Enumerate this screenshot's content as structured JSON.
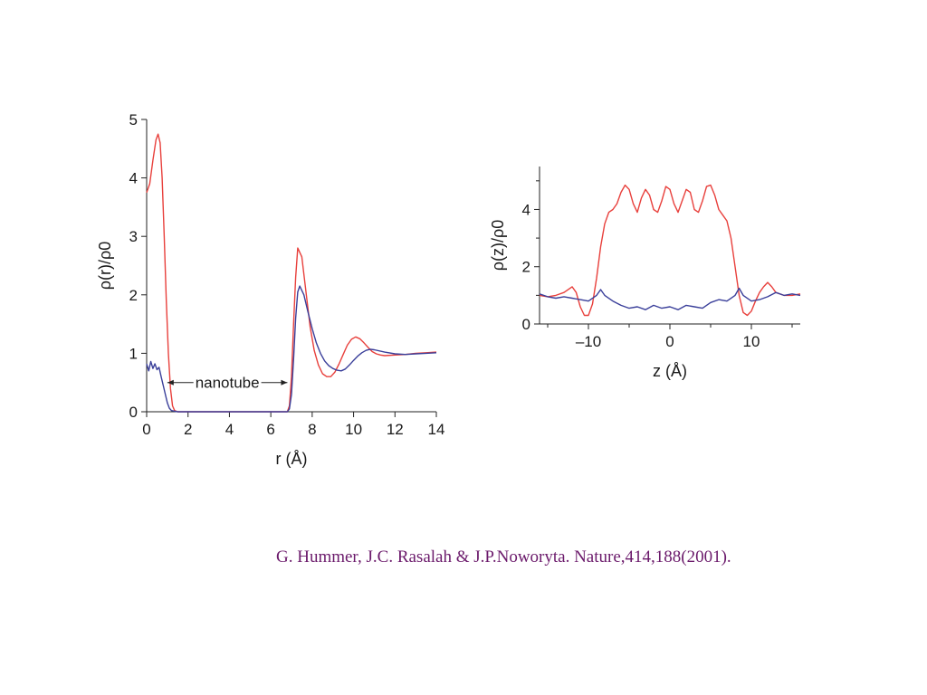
{
  "chart_data": [
    {
      "type": "line",
      "xlabel": "r (Å)",
      "ylabel": "ρ(r)/ρ0",
      "xlim": [
        0,
        14
      ],
      "ylim": [
        0,
        5
      ],
      "xticks": [
        0,
        2,
        4,
        6,
        8,
        10,
        12,
        14
      ],
      "yticks": [
        0,
        1,
        2,
        3,
        4,
        5
      ],
      "xtick_labels": [
        "0",
        "2",
        "4",
        "6",
        "8",
        "10",
        "12",
        "14"
      ],
      "ytick_labels": [
        "0",
        "1",
        "2",
        "3",
        "4",
        "5"
      ],
      "annotation": "nanotube",
      "annotation_range": [
        1.0,
        6.8
      ],
      "series": [
        {
          "color": "#e8403c",
          "x": [
            0,
            0.15,
            0.3,
            0.45,
            0.55,
            0.65,
            0.75,
            0.85,
            0.95,
            1.05,
            1.15,
            1.25,
            1.35,
            1.5,
            2,
            4,
            6,
            6.8,
            6.9,
            7.0,
            7.1,
            7.2,
            7.3,
            7.5,
            7.7,
            7.9,
            8.1,
            8.3,
            8.5,
            8.7,
            8.9,
            9.1,
            9.3,
            9.5,
            9.7,
            9.9,
            10.1,
            10.3,
            10.5,
            10.7,
            10.9,
            11.1,
            11.3,
            11.5,
            12,
            12.5,
            13,
            13.5,
            14
          ],
          "y": [
            3.75,
            3.9,
            4.3,
            4.65,
            4.75,
            4.6,
            4.0,
            3.0,
            1.9,
            1.0,
            0.4,
            0.1,
            0.02,
            0,
            0,
            0,
            0,
            0,
            0.1,
            0.6,
            1.5,
            2.3,
            2.8,
            2.65,
            2.05,
            1.45,
            1.05,
            0.8,
            0.65,
            0.6,
            0.6,
            0.68,
            0.82,
            0.98,
            1.14,
            1.24,
            1.28,
            1.25,
            1.18,
            1.1,
            1.03,
            0.99,
            0.97,
            0.96,
            0.97,
            0.98,
            1.0,
            1.01,
            1.02
          ]
        },
        {
          "color": "#3a3f9a",
          "x": [
            0,
            0.1,
            0.2,
            0.3,
            0.4,
            0.5,
            0.6,
            0.7,
            0.8,
            0.9,
            1.0,
            1.1,
            1.2,
            1.5,
            2,
            4,
            6,
            6.8,
            6.9,
            7.0,
            7.1,
            7.2,
            7.3,
            7.4,
            7.6,
            7.8,
            8.0,
            8.2,
            8.4,
            8.6,
            8.8,
            9.0,
            9.2,
            9.4,
            9.6,
            9.8,
            10.0,
            10.2,
            10.4,
            10.6,
            10.8,
            11.0,
            11.5,
            12,
            12.5,
            13,
            13.5,
            14
          ],
          "y": [
            0.82,
            0.7,
            0.86,
            0.74,
            0.82,
            0.72,
            0.76,
            0.6,
            0.45,
            0.3,
            0.15,
            0.06,
            0.02,
            0,
            0,
            0,
            0,
            0,
            0.05,
            0.3,
            0.9,
            1.6,
            2.05,
            2.15,
            2.0,
            1.7,
            1.42,
            1.18,
            1.0,
            0.87,
            0.79,
            0.74,
            0.71,
            0.7,
            0.73,
            0.8,
            0.88,
            0.95,
            1.01,
            1.05,
            1.07,
            1.06,
            1.02,
            0.99,
            0.98,
            0.99,
            1.0,
            1.01
          ]
        }
      ]
    },
    {
      "type": "line",
      "xlabel": "z (Å)",
      "ylabel": "ρ(z)/ρ0",
      "xlim": [
        -16,
        16
      ],
      "ylim": [
        0,
        5.5
      ],
      "xticks": [
        -10,
        0,
        10
      ],
      "yticks": [
        0,
        2,
        4
      ],
      "xtick_labels": [
        "–10",
        "0",
        "10"
      ],
      "ytick_labels": [
        "0",
        "2",
        "4"
      ],
      "series": [
        {
          "color": "#e8403c",
          "x": [
            -16,
            -15,
            -14,
            -13,
            -12,
            -11.5,
            -11,
            -10.5,
            -10,
            -9.5,
            -9,
            -8.5,
            -8,
            -7.5,
            -7,
            -6.5,
            -6,
            -5.5,
            -5,
            -4.5,
            -4,
            -3.5,
            -3,
            -2.5,
            -2,
            -1.5,
            -1,
            -0.5,
            0,
            0.5,
            1,
            1.5,
            2,
            2.5,
            3,
            3.5,
            4,
            4.5,
            5,
            5.5,
            6,
            6.5,
            7,
            7.5,
            8,
            8.5,
            9,
            9.5,
            10,
            10.5,
            11,
            11.5,
            12,
            12.5,
            13,
            14,
            15,
            16
          ],
          "y": [
            1.0,
            0.95,
            1.0,
            1.1,
            1.3,
            1.1,
            0.6,
            0.3,
            0.3,
            0.7,
            1.6,
            2.7,
            3.5,
            3.9,
            4.0,
            4.2,
            4.6,
            4.85,
            4.7,
            4.2,
            3.9,
            4.4,
            4.7,
            4.5,
            4.0,
            3.9,
            4.3,
            4.8,
            4.7,
            4.2,
            3.9,
            4.3,
            4.7,
            4.6,
            4.0,
            3.9,
            4.3,
            4.8,
            4.85,
            4.5,
            4.0,
            3.8,
            3.6,
            3.0,
            2.0,
            1.0,
            0.4,
            0.3,
            0.45,
            0.8,
            1.1,
            1.3,
            1.45,
            1.3,
            1.1,
            1.0,
            1.0,
            1.05
          ]
        },
        {
          "color": "#3a3f9a",
          "x": [
            -16,
            -15,
            -14,
            -13,
            -12,
            -11,
            -10,
            -9,
            -8.5,
            -8,
            -7,
            -6,
            -5,
            -4,
            -3,
            -2,
            -1,
            0,
            1,
            2,
            3,
            4,
            5,
            6,
            7,
            8,
            8.5,
            9,
            10,
            11,
            12,
            13,
            14,
            15,
            16
          ],
          "y": [
            1.05,
            0.95,
            0.9,
            0.95,
            0.9,
            0.85,
            0.8,
            1.0,
            1.2,
            1.0,
            0.8,
            0.65,
            0.55,
            0.6,
            0.5,
            0.65,
            0.55,
            0.6,
            0.5,
            0.65,
            0.6,
            0.55,
            0.75,
            0.85,
            0.8,
            1.0,
            1.25,
            1.0,
            0.8,
            0.85,
            0.95,
            1.1,
            1.0,
            1.05,
            1.0
          ]
        }
      ]
    }
  ],
  "citation": "G. Hummer, J.C. Rasalah & J.P.Noworyta. Nature,414,188(2001)."
}
